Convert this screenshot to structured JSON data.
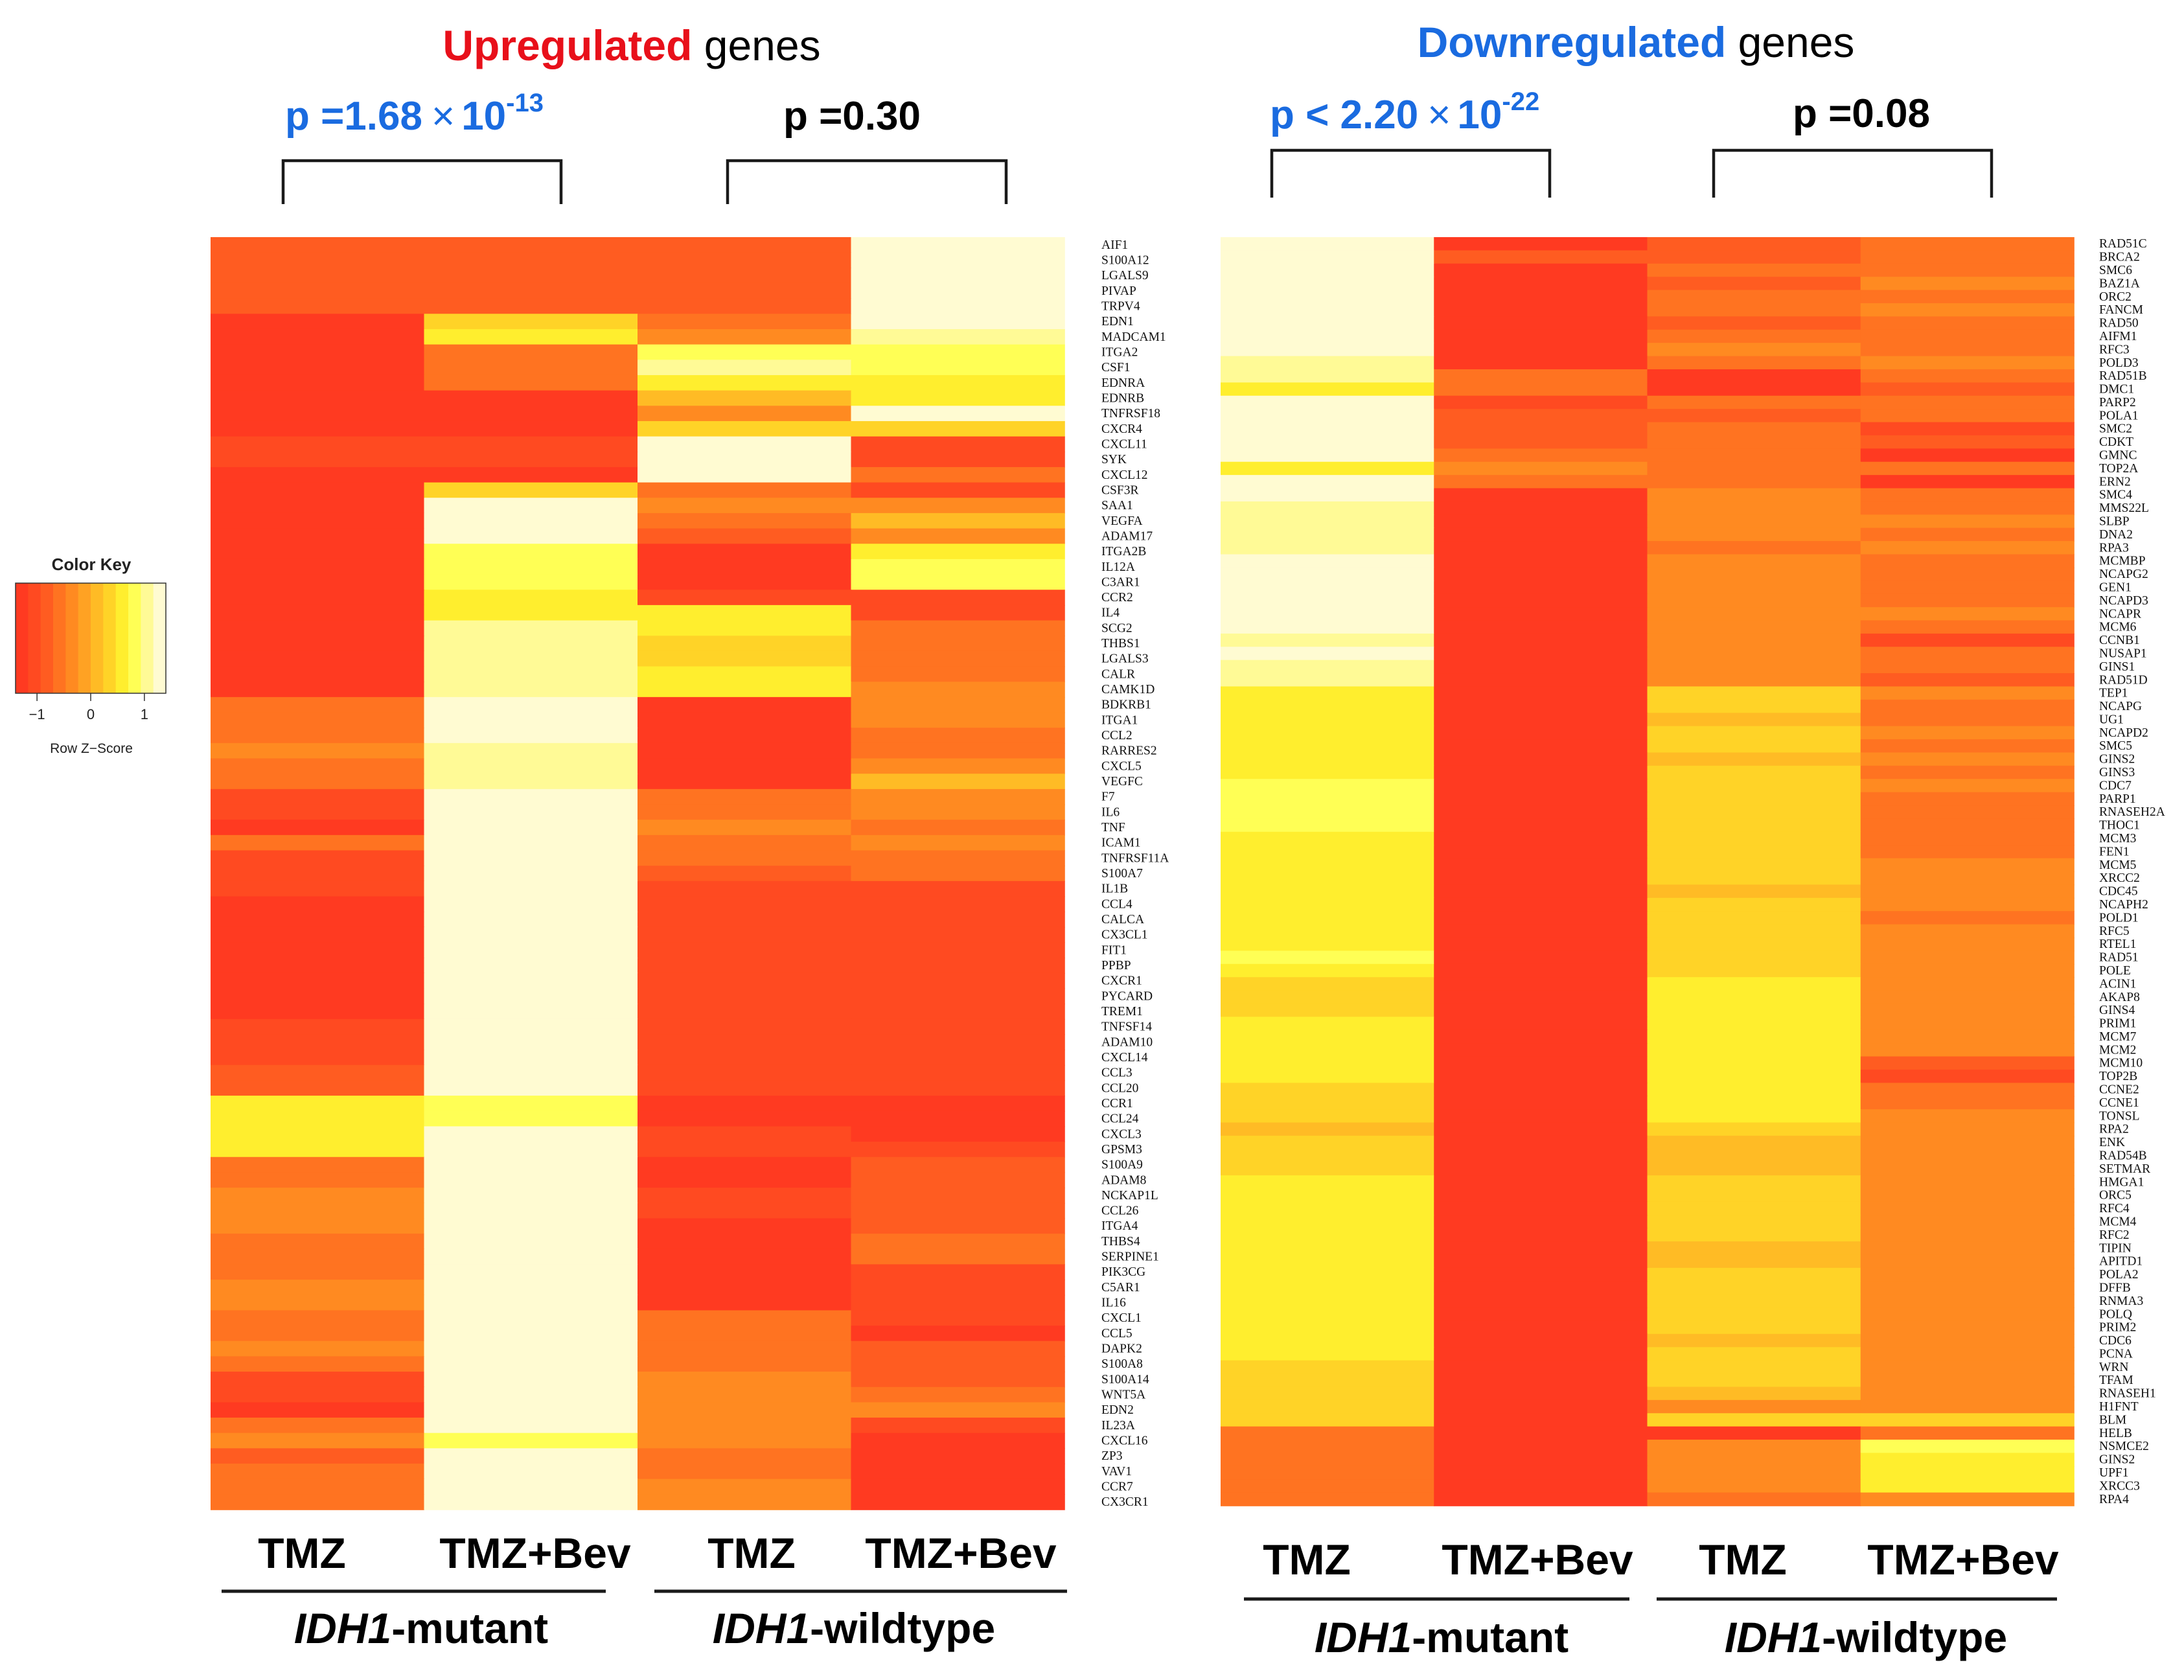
{
  "chart_data": [
    {
      "type": "heatmap",
      "title_highlight": "Upregulated",
      "title_rest": " genes",
      "title_color": "#e8101a",
      "columns": [
        "TMZ",
        "TMZ+Bev",
        "TMZ",
        "TMZ+Bev"
      ],
      "groups": [
        "IDH1",
        "-mutant",
        "IDH1",
        "-wildtype"
      ],
      "p_values": [
        {
          "prefix": "p =1.68",
          "times": "×",
          "base": "10",
          "exp": "-13",
          "color": "#1a6be0"
        },
        {
          "prefix": "p =0.30",
          "times": "",
          "base": "",
          "exp": "",
          "color": "#000000"
        }
      ],
      "row_labels": [
        "AIF1",
        "S100A12",
        "LGALS9",
        "PIVAP",
        "TRPV4",
        "EDN1",
        "MADCAM1",
        "ITGA2",
        "CSF1",
        "EDNRA",
        "EDNRB",
        "TNFRSF18",
        "CXCR4",
        "CXCL11",
        "SYK",
        "CXCL12",
        "CSF3R",
        "SAA1",
        "VEGFA",
        "ADAM17",
        "ITGA2B",
        "IL12A",
        "C3AR1",
        "CCR2",
        "IL4",
        "SCG2",
        "THBS1",
        "LGALS3",
        "CALR",
        "CAMK1D",
        "BDKRB1",
        "ITGA1",
        "CCL2",
        "RARRES2",
        "CXCL5",
        "VEGFC",
        "F7",
        "IL6",
        "TNF",
        "ICAM1",
        "TNFRSF11A",
        "S100A7",
        "IL1B",
        "CCL4",
        "CALCA",
        "CX3CL1",
        "FIT1",
        "PPBP",
        "CXCR1",
        "PYCARD",
        "TREM1",
        "TNFSF14",
        "ADAM10",
        "CXCL14",
        "CCL3",
        "CCL20",
        "CCR1",
        "CCL24",
        "CXCL3",
        "GPSM3",
        "S100A9",
        "ADAM8",
        "NCKAP1L",
        "CCL26",
        "ITGA4",
        "THBS4",
        "SERPINE1",
        "PIK3CG",
        "C5AR1",
        "IL16",
        "CXCL1",
        "CCL5",
        "DAPK2",
        "S100A8",
        "S100A14",
        "WNT5A",
        "EDN2",
        "IL23A",
        "CXCL16",
        "ZP3",
        "VAV1",
        "CCR7",
        "CX3CR1"
      ],
      "z_scores": [
        [
          -0.9,
          -0.9,
          -0.9,
          1.3
        ],
        [
          -0.9,
          -0.9,
          -0.9,
          1.3
        ],
        [
          -0.9,
          -0.9,
          -0.9,
          1.3
        ],
        [
          -0.9,
          -0.9,
          -0.9,
          1.3
        ],
        [
          -0.9,
          -0.9,
          -0.9,
          1.3
        ],
        [
          -1.2,
          0.3,
          -0.6,
          1.2
        ],
        [
          -1.2,
          0.6,
          -0.3,
          1.0
        ],
        [
          -1.2,
          -0.6,
          0.9,
          0.9
        ],
        [
          -1.2,
          -0.6,
          1.0,
          0.9
        ],
        [
          -1.2,
          -0.6,
          0.7,
          0.7
        ],
        [
          -1.2,
          -1.2,
          0.1,
          0.5
        ],
        [
          -1.2,
          -1.2,
          -0.3,
          1.3
        ],
        [
          -1.2,
          -1.2,
          0.3,
          0.3
        ],
        [
          -1.0,
          -1.0,
          1.3,
          -1.0
        ],
        [
          -1.0,
          -1.0,
          1.3,
          -1.0
        ],
        [
          -1.2,
          -1.2,
          1.2,
          -0.6
        ],
        [
          -1.2,
          0.3,
          -0.6,
          -1.0
        ],
        [
          -1.2,
          1.3,
          -0.3,
          -0.3
        ],
        [
          -1.2,
          1.3,
          -0.6,
          0.0
        ],
        [
          -1.2,
          1.3,
          -0.9,
          -0.3
        ],
        [
          -1.2,
          0.9,
          -1.2,
          0.6
        ],
        [
          -1.2,
          0.9,
          -1.2,
          0.9
        ],
        [
          -1.2,
          0.9,
          -1.2,
          0.9
        ],
        [
          -1.2,
          0.7,
          -1.0,
          -1.0
        ],
        [
          -1.2,
          0.7,
          0.6,
          -1.0
        ],
        [
          -1.2,
          1.0,
          0.5,
          -0.6
        ],
        [
          -1.2,
          1.0,
          0.3,
          -0.6
        ],
        [
          -1.2,
          1.0,
          0.3,
          -0.6
        ],
        [
          -1.2,
          1.0,
          0.6,
          -0.6
        ],
        [
          -1.2,
          1.0,
          0.6,
          -0.3
        ],
        [
          -0.6,
          1.3,
          -1.2,
          -0.3
        ],
        [
          -0.6,
          1.3,
          -1.2,
          -0.3
        ],
        [
          -0.6,
          1.3,
          -1.2,
          -0.6
        ],
        [
          -0.3,
          1.0,
          -1.2,
          -0.6
        ],
        [
          -0.6,
          1.0,
          -1.2,
          -0.3
        ],
        [
          -0.6,
          1.0,
          -1.2,
          0.0
        ],
        [
          -1.0,
          1.3,
          -0.6,
          -0.3
        ],
        [
          -1.0,
          1.3,
          -0.6,
          -0.3
        ],
        [
          -1.2,
          1.3,
          -0.3,
          -0.6
        ],
        [
          -0.6,
          1.3,
          -0.6,
          -0.3
        ],
        [
          -1.0,
          1.3,
          -0.6,
          -0.6
        ],
        [
          -1.0,
          1.3,
          -0.9,
          -0.6
        ],
        [
          -1.0,
          1.3,
          -1.0,
          -1.0
        ],
        [
          -1.2,
          1.3,
          -1.0,
          -1.0
        ],
        [
          -1.2,
          1.3,
          -1.0,
          -1.0
        ],
        [
          -1.2,
          1.3,
          -1.0,
          -1.0
        ],
        [
          -1.2,
          1.3,
          -1.0,
          -1.0
        ],
        [
          -1.2,
          1.3,
          -1.0,
          -1.0
        ],
        [
          -1.2,
          1.3,
          -1.0,
          -1.0
        ],
        [
          -1.2,
          1.3,
          -1.0,
          -1.0
        ],
        [
          -1.2,
          1.3,
          -1.0,
          -1.0
        ],
        [
          -1.0,
          1.3,
          -1.0,
          -1.0
        ],
        [
          -1.0,
          1.3,
          -1.0,
          -1.0
        ],
        [
          -1.0,
          1.3,
          -1.0,
          -1.0
        ],
        [
          -0.9,
          1.3,
          -1.0,
          -1.0
        ],
        [
          -0.9,
          1.3,
          -1.0,
          -1.0
        ],
        [
          0.5,
          0.9,
          -1.2,
          -1.2
        ],
        [
          0.5,
          0.9,
          -1.2,
          -1.2
        ],
        [
          0.5,
          1.2,
          -1.0,
          -1.2
        ],
        [
          0.5,
          1.2,
          -1.0,
          -1.0
        ],
        [
          -0.6,
          1.3,
          -1.2,
          -0.9
        ],
        [
          -0.6,
          1.3,
          -1.2,
          -0.9
        ],
        [
          -0.3,
          1.3,
          -1.0,
          -0.9
        ],
        [
          -0.3,
          1.3,
          -1.0,
          -0.9
        ],
        [
          -0.3,
          1.3,
          -1.2,
          -0.9
        ],
        [
          -0.6,
          1.3,
          -1.2,
          -0.6
        ],
        [
          -0.6,
          1.3,
          -1.2,
          -0.6
        ],
        [
          -0.6,
          1.3,
          -1.2,
          -1.0
        ],
        [
          -0.3,
          1.3,
          -1.2,
          -1.0
        ],
        [
          -0.3,
          1.3,
          -1.2,
          -1.0
        ],
        [
          -0.6,
          1.3,
          -0.6,
          -1.0
        ],
        [
          -0.6,
          1.3,
          -0.6,
          -1.2
        ],
        [
          -0.3,
          1.3,
          -0.6,
          -0.9
        ],
        [
          -0.6,
          1.3,
          -0.6,
          -0.9
        ],
        [
          -1.0,
          1.3,
          -0.3,
          -0.9
        ],
        [
          -1.0,
          1.3,
          -0.3,
          -0.6
        ],
        [
          -1.2,
          1.3,
          -0.3,
          -0.3
        ],
        [
          -0.6,
          1.3,
          -0.3,
          -1.0
        ],
        [
          -0.3,
          0.9,
          -0.3,
          -1.2
        ],
        [
          -0.9,
          1.3,
          -0.6,
          -1.2
        ],
        [
          -0.6,
          1.3,
          -0.6,
          -1.2
        ],
        [
          -0.6,
          1.3,
          -0.3,
          -1.2
        ],
        [
          -0.6,
          1.3,
          -0.3,
          -1.2
        ]
      ]
    },
    {
      "type": "heatmap",
      "title_highlight": "Downregulated",
      "title_rest": " genes",
      "title_color": "#1a6be0",
      "columns": [
        "TMZ",
        "TMZ+Bev",
        "TMZ",
        "TMZ+Bev"
      ],
      "groups": [
        "IDH1",
        "-mutant",
        "IDH1",
        "-wildtype"
      ],
      "p_values": [
        {
          "prefix": "p < 2.20",
          "times": "×",
          "base": "10",
          "exp": "-22",
          "color": "#1a6be0"
        },
        {
          "prefix": "p =0.08",
          "times": "",
          "base": "",
          "exp": "",
          "color": "#000000"
        }
      ],
      "row_labels": [
        "RAD51C",
        "BRCA2",
        "SMC6",
        "BAZ1A",
        "ORC2",
        "FANCM",
        "RAD50",
        "AIFM1",
        "RFC3",
        "POLD3",
        "RAD51B",
        "DMC1",
        "PARP2",
        "POLA1",
        "SMC2",
        "CDKT",
        "GMNC",
        "TOP2A",
        "ERN2",
        "SMC4",
        "MMS22L",
        "SLBP",
        "DNA2",
        "RPA3",
        "MCMBP",
        "NCAPG2",
        "GEN1",
        "NCAPD3",
        "NCAPR",
        "MCM6",
        "CCNB1",
        "NUSAP1",
        "GINS1",
        "RAD51D",
        "TEP1",
        "NCAPG",
        "UG1",
        "NCAPD2",
        "SMC5",
        "GINS2",
        "GINS3",
        "CDC7",
        "PARP1",
        "RNASEH2A",
        "THOC1",
        "MCM3",
        "FEN1",
        "MCM5",
        "XRCC2",
        "CDC45",
        "NCAPH2",
        "POLD1",
        "RFC5",
        "RTEL1",
        "RAD51",
        "POLE",
        "ACIN1",
        "AKAP8",
        "GINS4",
        "PRIM1",
        "MCM7",
        "MCM2",
        "MCM10",
        "TOP2B",
        "CCNE2",
        "CCNE1",
        "TONSL",
        "RPA2",
        "ENK",
        "RAD54B",
        "SETMAR",
        "HMGA1",
        "ORC5",
        "RFC4",
        "MCM4",
        "RFC2",
        "TIPIN",
        "APITD1",
        "POLA2",
        "DFFB",
        "RNMA3",
        "POLQ",
        "PRIM2",
        "CDC6",
        "PCNA",
        "WRN",
        "TFAM",
        "RNASEH1",
        "H1FNT",
        "BLM",
        "HELB",
        "NSMCE2",
        "GINS2",
        "UPF1",
        "XRCC3",
        "RPA4"
      ],
      "z_scores": [
        [
          1.3,
          -1.2,
          -0.9,
          -0.6
        ],
        [
          1.3,
          -0.9,
          -0.9,
          -0.6
        ],
        [
          1.3,
          -1.2,
          -0.6,
          -0.6
        ],
        [
          1.3,
          -1.2,
          -0.9,
          -0.3
        ],
        [
          1.3,
          -1.2,
          -0.6,
          -0.6
        ],
        [
          1.3,
          -1.2,
          -0.6,
          -0.3
        ],
        [
          1.3,
          -1.2,
          -0.9,
          -0.6
        ],
        [
          1.3,
          -1.2,
          -0.6,
          -0.6
        ],
        [
          1.3,
          -1.2,
          -0.3,
          -0.6
        ],
        [
          1.0,
          -1.2,
          -0.6,
          -0.3
        ],
        [
          1.0,
          -0.6,
          -1.2,
          -0.6
        ],
        [
          0.7,
          -0.6,
          -1.2,
          -0.9
        ],
        [
          1.3,
          -1.0,
          -0.6,
          -0.6
        ],
        [
          1.3,
          -0.9,
          -0.9,
          -0.6
        ],
        [
          1.3,
          -0.9,
          -0.6,
          -1.0
        ],
        [
          1.3,
          -0.9,
          -0.6,
          -0.9
        ],
        [
          1.3,
          -0.6,
          -0.6,
          -1.2
        ],
        [
          0.5,
          -0.3,
          -0.6,
          -0.6
        ],
        [
          1.3,
          -0.6,
          -0.6,
          -1.2
        ],
        [
          1.3,
          -1.2,
          -0.3,
          -0.6
        ],
        [
          1.0,
          -1.2,
          -0.3,
          -0.6
        ],
        [
          1.0,
          -1.2,
          -0.3,
          -0.3
        ],
        [
          1.0,
          -1.2,
          -0.3,
          -0.6
        ],
        [
          1.0,
          -1.2,
          -0.6,
          -0.3
        ],
        [
          1.3,
          -1.2,
          -0.3,
          -0.6
        ],
        [
          1.3,
          -1.2,
          -0.3,
          -0.6
        ],
        [
          1.3,
          -1.2,
          -0.3,
          -0.6
        ],
        [
          1.3,
          -1.2,
          -0.3,
          -0.6
        ],
        [
          1.3,
          -1.2,
          -0.3,
          -0.3
        ],
        [
          1.3,
          -1.2,
          -0.3,
          -0.6
        ],
        [
          1.0,
          -1.2,
          -0.3,
          -1.0
        ],
        [
          1.3,
          -1.2,
          -0.3,
          -0.6
        ],
        [
          1.0,
          -1.2,
          -0.3,
          -0.6
        ],
        [
          1.0,
          -1.2,
          -0.3,
          -0.9
        ],
        [
          0.7,
          -1.2,
          0.3,
          -0.3
        ],
        [
          0.7,
          -1.2,
          0.3,
          -0.6
        ],
        [
          0.7,
          -1.2,
          0.0,
          -0.6
        ],
        [
          0.7,
          -1.2,
          0.3,
          -0.3
        ],
        [
          0.6,
          -1.2,
          0.3,
          -0.6
        ],
        [
          0.6,
          -1.2,
          0.0,
          -0.3
        ],
        [
          0.6,
          -1.2,
          0.3,
          -0.6
        ],
        [
          0.9,
          -1.2,
          0.3,
          -0.3
        ],
        [
          0.9,
          -1.2,
          0.3,
          -0.6
        ],
        [
          0.9,
          -1.2,
          0.3,
          -0.6
        ],
        [
          0.9,
          -1.2,
          0.3,
          -0.6
        ],
        [
          0.6,
          -1.2,
          0.3,
          -0.6
        ],
        [
          0.6,
          -1.2,
          0.3,
          -0.6
        ],
        [
          0.6,
          -1.2,
          0.3,
          -0.3
        ],
        [
          0.6,
          -1.2,
          0.3,
          -0.3
        ],
        [
          0.6,
          -1.2,
          0.0,
          -0.3
        ],
        [
          0.6,
          -1.2,
          0.3,
          -0.3
        ],
        [
          0.6,
          -1.2,
          0.3,
          -0.6
        ],
        [
          0.6,
          -1.2,
          0.3,
          -0.3
        ],
        [
          0.6,
          -1.2,
          0.3,
          -0.3
        ],
        [
          0.9,
          -1.2,
          0.3,
          -0.3
        ],
        [
          0.6,
          -1.2,
          0.3,
          -0.3
        ],
        [
          0.3,
          -1.2,
          0.6,
          -0.3
        ],
        [
          0.3,
          -1.2,
          0.6,
          -0.3
        ],
        [
          0.3,
          -1.2,
          0.6,
          -0.3
        ],
        [
          0.6,
          -1.2,
          0.6,
          -0.3
        ],
        [
          0.6,
          -1.2,
          0.6,
          -0.3
        ],
        [
          0.6,
          -1.2,
          0.6,
          -0.3
        ],
        [
          0.6,
          -1.2,
          0.6,
          -0.9
        ],
        [
          0.6,
          -1.2,
          0.6,
          -1.0
        ],
        [
          0.3,
          -1.2,
          0.6,
          -0.6
        ],
        [
          0.3,
          -1.2,
          0.6,
          -0.6
        ],
        [
          0.3,
          -1.2,
          0.6,
          -0.3
        ],
        [
          0.0,
          -1.2,
          0.3,
          -0.3
        ],
        [
          0.3,
          -1.2,
          0.0,
          -0.3
        ],
        [
          0.3,
          -1.2,
          0.0,
          -0.3
        ],
        [
          0.3,
          -1.2,
          0.0,
          -0.3
        ],
        [
          0.6,
          -1.2,
          0.3,
          -0.3
        ],
        [
          0.6,
          -1.2,
          0.3,
          -0.3
        ],
        [
          0.6,
          -1.2,
          0.3,
          -0.3
        ],
        [
          0.6,
          -1.2,
          0.3,
          -0.3
        ],
        [
          0.6,
          -1.2,
          0.3,
          -0.3
        ],
        [
          0.6,
          -1.2,
          0.0,
          -0.3
        ],
        [
          0.6,
          -1.2,
          0.0,
          -0.3
        ],
        [
          0.6,
          -1.2,
          0.3,
          -0.3
        ],
        [
          0.6,
          -1.2,
          0.3,
          -0.3
        ],
        [
          0.6,
          -1.2,
          0.3,
          -0.3
        ],
        [
          0.6,
          -1.2,
          0.3,
          -0.3
        ],
        [
          0.6,
          -1.2,
          0.3,
          -0.3
        ],
        [
          0.6,
          -1.2,
          0.0,
          -0.3
        ],
        [
          0.6,
          -1.2,
          0.3,
          -0.3
        ],
        [
          0.3,
          -1.2,
          0.3,
          -0.3
        ],
        [
          0.3,
          -1.2,
          0.3,
          -0.3
        ],
        [
          0.3,
          -1.2,
          0.0,
          -0.3
        ],
        [
          0.3,
          -1.2,
          -0.3,
          -0.3
        ],
        [
          0.3,
          -1.2,
          0.3,
          0.3
        ],
        [
          -0.6,
          -1.2,
          -1.2,
          -0.6
        ],
        [
          -0.6,
          -1.2,
          -0.3,
          0.9
        ],
        [
          -0.6,
          -1.2,
          -0.3,
          0.6
        ],
        [
          -0.6,
          -1.2,
          -0.3,
          0.6
        ],
        [
          -0.6,
          -1.2,
          -0.3,
          0.6
        ],
        [
          -0.6,
          -1.2,
          -0.6,
          -0.3
        ]
      ]
    }
  ],
  "color_key": {
    "title": "Color Key",
    "xlabel": "Row Z−Score",
    "ticks": [
      "−1",
      "0",
      "1"
    ],
    "tick_values": [
      -1,
      0,
      1
    ],
    "range": [
      -1.4,
      1.4
    ],
    "colors": [
      "#ff3a21",
      "#ff4a21",
      "#ff5c21",
      "#ff7321",
      "#ff8a21",
      "#ffa223",
      "#ffbb25",
      "#ffd327",
      "#ffee2e",
      "#ffff55",
      "#fffa96",
      "#fffbd2"
    ]
  }
}
